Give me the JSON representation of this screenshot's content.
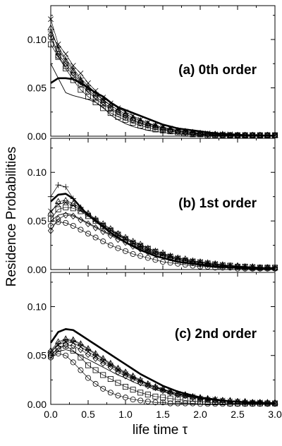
{
  "figure": {
    "ylabel": "Residence Probabilities",
    "xlabel": "life time τ"
  },
  "chart_data": [
    {
      "type": "line",
      "title": "(a) 0th order",
      "xlabel": "life time τ",
      "ylabel": "Residence Probabilities",
      "xlim": [
        0.0,
        3.0
      ],
      "ylim": [
        0.0,
        0.135
      ],
      "xticks": [
        "0.0",
        "0.5",
        "1.0",
        "1.5",
        "2.0",
        "2.5",
        "3.0"
      ],
      "yticks": [
        "0.00",
        "0.05",
        "0.10"
      ],
      "x": [
        0.0,
        0.1,
        0.2,
        0.3,
        0.4,
        0.5,
        0.6,
        0.7,
        0.8,
        0.9,
        1.0,
        1.1,
        1.2,
        1.3,
        1.4,
        1.5,
        1.6,
        1.7,
        1.8,
        1.9,
        2.0,
        2.1,
        2.2,
        2.3,
        2.4,
        2.5,
        2.6,
        2.7,
        2.8,
        2.9,
        3.0
      ],
      "series": [
        {
          "marker": "thick",
          "values": [
            0.055,
            0.06,
            0.06,
            0.059,
            0.055,
            0.05,
            0.045,
            0.041,
            0.035,
            0.03,
            0.027,
            0.024,
            0.021,
            0.018,
            0.015,
            0.012,
            0.01,
            0.008,
            0.007,
            0.006,
            0.005,
            0.004,
            0.003,
            0.0025,
            0.002,
            0.0015,
            0.001,
            0.001,
            0.0008,
            0.0006,
            0.0005
          ]
        },
        {
          "marker": "thin",
          "values": [
            0.075,
            0.06,
            0.045,
            0.042,
            0.04,
            0.038,
            0.035,
            0.03,
            0.022,
            0.017,
            0.013,
            0.01,
            0.008,
            0.006,
            0.005,
            0.004,
            0.003,
            0.0025,
            0.002,
            0.0015,
            0.001,
            0.0008,
            0.0006,
            0.0005,
            0.0004,
            0.0003,
            0.0002,
            0.0002,
            0.0001,
            0.0001,
            0.0001
          ]
        },
        {
          "marker": "x",
          "values": [
            0.121,
            0.095,
            0.085,
            0.073,
            0.065,
            0.055,
            0.047,
            0.04,
            0.034,
            0.029,
            0.025,
            0.021,
            0.017,
            0.014,
            0.011,
            0.009,
            0.008,
            0.006,
            0.005,
            0.004,
            0.003,
            0.003,
            0.002,
            0.002,
            0.002,
            0.001,
            0.001,
            0.001,
            0.001,
            0.001,
            0.001
          ]
        },
        {
          "marker": "triangle",
          "values": [
            0.112,
            0.09,
            0.078,
            0.068,
            0.058,
            0.05,
            0.044,
            0.037,
            0.032,
            0.027,
            0.023,
            0.019,
            0.016,
            0.013,
            0.011,
            0.009,
            0.007,
            0.006,
            0.005,
            0.004,
            0.003,
            0.002,
            0.002,
            0.002,
            0.001,
            0.001,
            0.001,
            0.001,
            0.001,
            0.001,
            0.001
          ]
        },
        {
          "marker": "plus",
          "values": [
            0.108,
            0.092,
            0.08,
            0.07,
            0.06,
            0.052,
            0.045,
            0.038,
            0.032,
            0.027,
            0.023,
            0.019,
            0.016,
            0.013,
            0.011,
            0.009,
            0.007,
            0.006,
            0.005,
            0.004,
            0.003,
            0.002,
            0.002,
            0.001,
            0.001,
            0.001,
            0.001,
            0.001,
            0.001,
            0.001,
            0.001
          ]
        },
        {
          "marker": "diamond",
          "values": [
            0.105,
            0.085,
            0.075,
            0.065,
            0.056,
            0.048,
            0.041,
            0.035,
            0.029,
            0.025,
            0.021,
            0.017,
            0.014,
            0.012,
            0.01,
            0.008,
            0.006,
            0.005,
            0.004,
            0.003,
            0.003,
            0.002,
            0.002,
            0.001,
            0.001,
            0.001,
            0.001,
            0.001,
            0.001,
            0.001,
            0.001
          ]
        },
        {
          "marker": "circle",
          "values": [
            0.102,
            0.083,
            0.072,
            0.063,
            0.054,
            0.046,
            0.039,
            0.033,
            0.028,
            0.023,
            0.019,
            0.016,
            0.013,
            0.011,
            0.009,
            0.007,
            0.006,
            0.005,
            0.004,
            0.003,
            0.002,
            0.002,
            0.001,
            0.001,
            0.001,
            0.001,
            0.001,
            0.001,
            0.001,
            0.001,
            0.001
          ]
        },
        {
          "marker": "square",
          "values": [
            0.095,
            0.082,
            0.07,
            0.058,
            0.048,
            0.041,
            0.035,
            0.029,
            0.024,
            0.02,
            0.017,
            0.014,
            0.011,
            0.009,
            0.007,
            0.006,
            0.005,
            0.004,
            0.003,
            0.002,
            0.002,
            0.001,
            0.001,
            0.001,
            0.001,
            0.001,
            0.001,
            0.001,
            0.001,
            0.001,
            0.001
          ]
        }
      ]
    },
    {
      "type": "line",
      "title": "(b) 1st order",
      "xlabel": "life time τ",
      "ylabel": "Residence Probabilities",
      "xlim": [
        0.0,
        3.0
      ],
      "ylim": [
        0.0,
        0.135
      ],
      "xticks": [
        "0.0",
        "0.5",
        "1.0",
        "1.5",
        "2.0",
        "2.5",
        "3.0"
      ],
      "yticks": [
        "0.00",
        "0.05",
        "0.10"
      ],
      "x": [
        0.0,
        0.1,
        0.2,
        0.3,
        0.4,
        0.5,
        0.6,
        0.7,
        0.8,
        0.9,
        1.0,
        1.1,
        1.2,
        1.3,
        1.4,
        1.5,
        1.6,
        1.7,
        1.8,
        1.9,
        2.0,
        2.1,
        2.2,
        2.3,
        2.4,
        2.5,
        2.6,
        2.7,
        2.8,
        2.9,
        3.0
      ],
      "series": [
        {
          "marker": "thick",
          "values": [
            0.07,
            0.077,
            0.078,
            0.073,
            0.064,
            0.056,
            0.05,
            0.044,
            0.038,
            0.033,
            0.028,
            0.024,
            0.02,
            0.017,
            0.014,
            0.012,
            0.01,
            0.008,
            0.007,
            0.006,
            0.005,
            0.004,
            0.003,
            0.003,
            0.002,
            0.002,
            0.002,
            0.001,
            0.001,
            0.001,
            0.001
          ]
        },
        {
          "marker": "plus",
          "values": [
            0.075,
            0.087,
            0.085,
            0.073,
            0.064,
            0.057,
            0.051,
            0.045,
            0.04,
            0.035,
            0.031,
            0.027,
            0.023,
            0.02,
            0.017,
            0.015,
            0.013,
            0.011,
            0.009,
            0.008,
            0.007,
            0.006,
            0.005,
            0.004,
            0.004,
            0.003,
            0.003,
            0.002,
            0.002,
            0.002,
            0.002
          ]
        },
        {
          "marker": "triangle",
          "values": [
            0.058,
            0.07,
            0.071,
            0.068,
            0.063,
            0.058,
            0.052,
            0.047,
            0.042,
            0.037,
            0.033,
            0.029,
            0.026,
            0.022,
            0.019,
            0.017,
            0.014,
            0.012,
            0.011,
            0.009,
            0.008,
            0.007,
            0.006,
            0.005,
            0.004,
            0.004,
            0.003,
            0.003,
            0.002,
            0.002,
            0.002
          ]
        },
        {
          "marker": "x",
          "values": [
            0.06,
            0.067,
            0.069,
            0.066,
            0.061,
            0.056,
            0.051,
            0.046,
            0.041,
            0.036,
            0.032,
            0.028,
            0.025,
            0.022,
            0.019,
            0.016,
            0.014,
            0.012,
            0.01,
            0.009,
            0.008,
            0.007,
            0.006,
            0.005,
            0.004,
            0.003,
            0.003,
            0.003,
            0.002,
            0.002,
            0.002
          ]
        },
        {
          "marker": "square",
          "values": [
            0.052,
            0.062,
            0.064,
            0.063,
            0.06,
            0.055,
            0.05,
            0.045,
            0.04,
            0.036,
            0.031,
            0.027,
            0.024,
            0.021,
            0.018,
            0.015,
            0.013,
            0.011,
            0.009,
            0.008,
            0.007,
            0.006,
            0.005,
            0.004,
            0.004,
            0.003,
            0.003,
            0.002,
            0.002,
            0.002,
            0.002
          ]
        },
        {
          "marker": "thin",
          "values": [
            0.05,
            0.056,
            0.058,
            0.056,
            0.052,
            0.048,
            0.044,
            0.04,
            0.036,
            0.032,
            0.028,
            0.025,
            0.022,
            0.019,
            0.016,
            0.014,
            0.012,
            0.01,
            0.009,
            0.008,
            0.007,
            0.006,
            0.005,
            0.004,
            0.004,
            0.003,
            0.003,
            0.002,
            0.002,
            0.002,
            0.002
          ]
        },
        {
          "marker": "diamond",
          "values": [
            0.04,
            0.052,
            0.056,
            0.055,
            0.051,
            0.047,
            0.043,
            0.039,
            0.035,
            0.031,
            0.028,
            0.024,
            0.021,
            0.018,
            0.016,
            0.014,
            0.012,
            0.01,
            0.009,
            0.007,
            0.006,
            0.005,
            0.005,
            0.004,
            0.003,
            0.003,
            0.002,
            0.002,
            0.002,
            0.002,
            0.001
          ]
        },
        {
          "marker": "circle",
          "values": [
            0.045,
            0.049,
            0.048,
            0.045,
            0.041,
            0.037,
            0.033,
            0.029,
            0.025,
            0.022,
            0.019,
            0.016,
            0.014,
            0.012,
            0.01,
            0.008,
            0.007,
            0.006,
            0.005,
            0.004,
            0.003,
            0.003,
            0.002,
            0.002,
            0.002,
            0.001,
            0.001,
            0.001,
            0.001,
            0.001,
            0.001
          ]
        }
      ]
    },
    {
      "type": "line",
      "title": "(c) 2nd order",
      "xlabel": "life time τ",
      "ylabel": "Residence Probabilities",
      "xlim": [
        0.0,
        3.0
      ],
      "ylim": [
        0.0,
        0.135
      ],
      "xticks": [
        "0.0",
        "0.5",
        "1.0",
        "1.5",
        "2.0",
        "2.5",
        "3.0"
      ],
      "yticks": [
        "0.00",
        "0.05",
        "0.10"
      ],
      "x": [
        0.0,
        0.1,
        0.2,
        0.3,
        0.4,
        0.5,
        0.6,
        0.7,
        0.8,
        0.9,
        1.0,
        1.1,
        1.2,
        1.3,
        1.4,
        1.5,
        1.6,
        1.7,
        1.8,
        1.9,
        2.0,
        2.1,
        2.2,
        2.3,
        2.4,
        2.5,
        2.6,
        2.7,
        2.8,
        2.9,
        3.0
      ],
      "series": [
        {
          "marker": "thick",
          "values": [
            0.063,
            0.074,
            0.077,
            0.076,
            0.071,
            0.066,
            0.061,
            0.056,
            0.051,
            0.046,
            0.041,
            0.036,
            0.031,
            0.027,
            0.023,
            0.019,
            0.016,
            0.013,
            0.011,
            0.009,
            0.007,
            0.006,
            0.005,
            0.004,
            0.003,
            0.003,
            0.002,
            0.002,
            0.002,
            0.001,
            0.001
          ]
        },
        {
          "marker": "triangle",
          "values": [
            0.055,
            0.064,
            0.067,
            0.066,
            0.062,
            0.057,
            0.052,
            0.047,
            0.042,
            0.037,
            0.033,
            0.029,
            0.025,
            0.021,
            0.018,
            0.016,
            0.013,
            0.011,
            0.01,
            0.008,
            0.007,
            0.006,
            0.005,
            0.004,
            0.004,
            0.003,
            0.003,
            0.002,
            0.002,
            0.002,
            0.002
          ]
        },
        {
          "marker": "plus",
          "values": [
            0.054,
            0.062,
            0.066,
            0.065,
            0.061,
            0.056,
            0.051,
            0.046,
            0.041,
            0.036,
            0.032,
            0.028,
            0.024,
            0.021,
            0.018,
            0.015,
            0.013,
            0.011,
            0.009,
            0.008,
            0.007,
            0.006,
            0.005,
            0.004,
            0.003,
            0.003,
            0.002,
            0.002,
            0.002,
            0.002,
            0.001
          ]
        },
        {
          "marker": "x",
          "values": [
            0.053,
            0.061,
            0.064,
            0.063,
            0.059,
            0.054,
            0.049,
            0.044,
            0.04,
            0.035,
            0.031,
            0.027,
            0.024,
            0.02,
            0.017,
            0.015,
            0.013,
            0.011,
            0.009,
            0.008,
            0.006,
            0.005,
            0.005,
            0.004,
            0.003,
            0.003,
            0.002,
            0.002,
            0.002,
            0.001,
            0.001
          ]
        },
        {
          "marker": "diamond",
          "values": [
            0.05,
            0.058,
            0.061,
            0.06,
            0.056,
            0.051,
            0.047,
            0.042,
            0.038,
            0.033,
            0.029,
            0.026,
            0.022,
            0.019,
            0.017,
            0.014,
            0.012,
            0.01,
            0.009,
            0.007,
            0.006,
            0.005,
            0.004,
            0.004,
            0.003,
            0.003,
            0.002,
            0.002,
            0.002,
            0.001,
            0.001
          ]
        },
        {
          "marker": "thin",
          "values": [
            0.049,
            0.054,
            0.056,
            0.054,
            0.05,
            0.046,
            0.042,
            0.038,
            0.034,
            0.03,
            0.027,
            0.023,
            0.02,
            0.018,
            0.015,
            0.013,
            0.011,
            0.009,
            0.008,
            0.007,
            0.006,
            0.005,
            0.004,
            0.003,
            0.003,
            0.002,
            0.002,
            0.002,
            0.001,
            0.001,
            0.001
          ]
        },
        {
          "marker": "square",
          "values": [
            0.05,
            0.057,
            0.06,
            0.055,
            0.048,
            0.04,
            0.035,
            0.03,
            0.026,
            0.022,
            0.018,
            0.015,
            0.012,
            0.01,
            0.008,
            0.007,
            0.006,
            0.005,
            0.004,
            0.003,
            0.003,
            0.002,
            0.002,
            0.002,
            0.001,
            0.001,
            0.001,
            0.001,
            0.001,
            0.001,
            0.001
          ]
        },
        {
          "marker": "circle",
          "values": [
            0.048,
            0.052,
            0.05,
            0.043,
            0.035,
            0.027,
            0.021,
            0.016,
            0.012,
            0.009,
            0.007,
            0.005,
            0.004,
            0.003,
            0.002,
            0.002,
            0.001,
            0.001,
            0.001,
            0.001,
            0.0005,
            0.0005,
            0.0005,
            0.0005,
            0.0005,
            0.0005,
            0.0005,
            0.0005,
            0.0005,
            0.0005,
            0.0005
          ]
        }
      ]
    }
  ]
}
